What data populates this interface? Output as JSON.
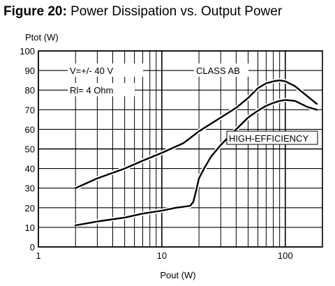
{
  "figure": {
    "number": "Figure 20:",
    "title": "Power Dissipation vs. Output Power"
  },
  "chart_data": {
    "type": "line",
    "title": "Power Dissipation vs. Output Power",
    "xlabel": "Pout (W)",
    "ylabel": "Ptot (W)",
    "xscale": "log",
    "xlim": [
      1,
      200
    ],
    "ylim": [
      0,
      100
    ],
    "xticks": [
      1,
      10,
      100
    ],
    "yticks": [
      0,
      10,
      20,
      30,
      40,
      50,
      60,
      70,
      80,
      90,
      100
    ],
    "grid": true,
    "annotations": [
      "V=+/- 40 V",
      "Rl= 4 Ohm"
    ],
    "series": [
      {
        "name": "CLASS AB",
        "x": [
          2,
          3,
          5,
          7,
          10,
          15,
          20,
          30,
          40,
          50,
          60,
          70,
          80,
          90,
          100,
          120,
          150,
          180
        ],
        "y": [
          30,
          35,
          40,
          44,
          48,
          53,
          59,
          66,
          71,
          76,
          81,
          83.5,
          84.5,
          85,
          84.5,
          82,
          77,
          73
        ]
      },
      {
        "name": "HIGH-EFFICIENCY",
        "x": [
          2,
          3,
          5,
          7,
          10,
          13,
          15,
          17,
          18,
          19,
          20,
          22,
          25,
          30,
          40,
          50,
          60,
          70,
          80,
          90,
          100,
          120,
          150,
          180
        ],
        "y": [
          11,
          13,
          15,
          17,
          18.5,
          20,
          20.5,
          21,
          23,
          29,
          35,
          40,
          46,
          52,
          60,
          66,
          69.5,
          72,
          73.5,
          74.5,
          75,
          74.5,
          71.5,
          70
        ]
      }
    ]
  },
  "colors": {
    "ink": "#000000",
    "background": "#ffffff"
  }
}
